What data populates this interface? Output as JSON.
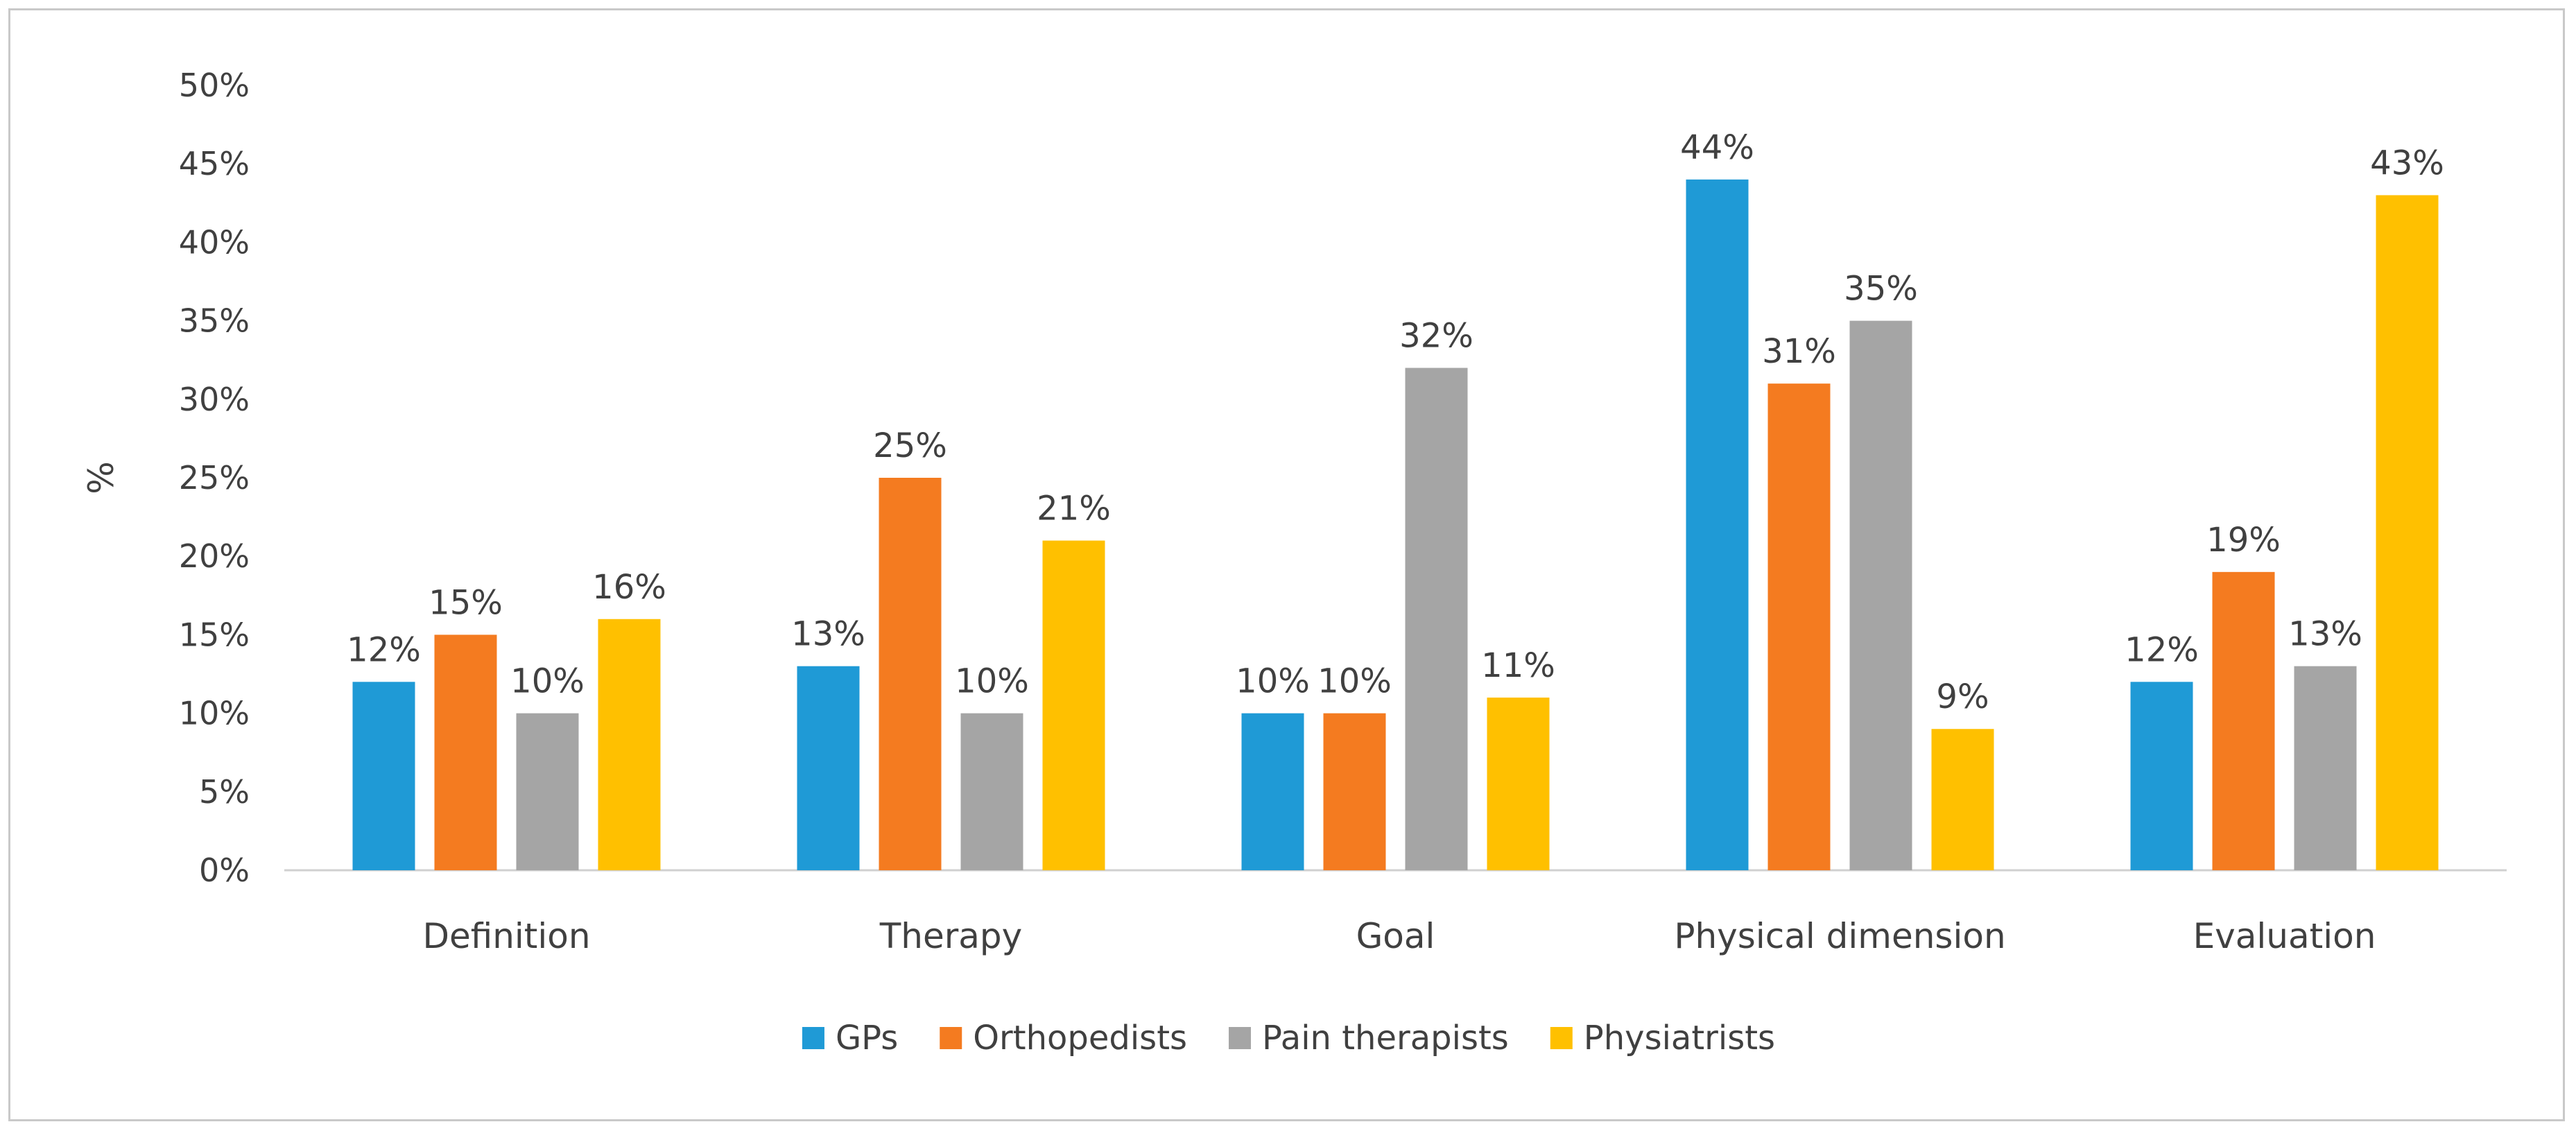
{
  "chart_data": {
    "type": "bar",
    "title": "",
    "xlabel": "",
    "ylabel": "%",
    "ylim": [
      0,
      50
    ],
    "y_ticks": [
      "0%",
      "5%",
      "10%",
      "15%",
      "20%",
      "25%",
      "30%",
      "35%",
      "40%",
      "45%",
      "50%"
    ],
    "y_tick_values": [
      0,
      5,
      10,
      15,
      20,
      25,
      30,
      35,
      40,
      45,
      50
    ],
    "grid": false,
    "legend_position": "bottom",
    "categories": [
      "Definition",
      "Therapy",
      "Goal",
      "Physical dimension",
      "Evaluation"
    ],
    "series": [
      {
        "name": "GPs",
        "color": "#1f9ad6",
        "values": [
          12,
          13,
          10,
          44,
          12
        ],
        "labels": [
          "12%",
          "13%",
          "10%",
          "44%",
          "12%"
        ]
      },
      {
        "name": "Orthopedists",
        "color": "#f47b20",
        "values": [
          15,
          25,
          10,
          31,
          19
        ],
        "labels": [
          "15%",
          "25%",
          "10%",
          "31%",
          "19%"
        ]
      },
      {
        "name": "Pain therapists",
        "color": "#a5a5a5",
        "values": [
          10,
          10,
          32,
          35,
          13
        ],
        "labels": [
          "10%",
          "10%",
          "32%",
          "35%",
          "13%"
        ]
      },
      {
        "name": "Physiatrists",
        "color": "#ffc000",
        "values": [
          16,
          21,
          11,
          9,
          43
        ],
        "labels": [
          "16%",
          "21%",
          "11%",
          "9%",
          "43%"
        ]
      }
    ]
  }
}
